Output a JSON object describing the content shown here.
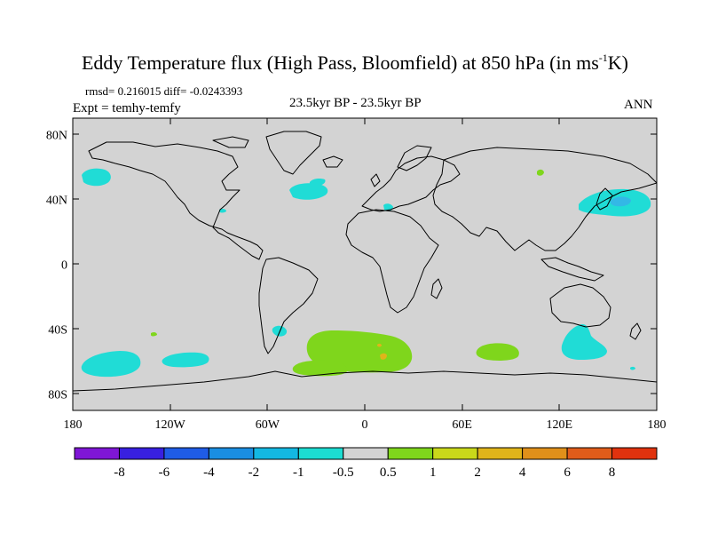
{
  "title": {
    "main": "Eddy Temperature flux (High Pass, Bloomfield) at 850 hPa (in ms",
    "unit_sup": "-1",
    "unit_end": "K)"
  },
  "stats": "rmsd= 0.216015 diff= -0.0243393",
  "expt": "Expt = temhy-temfy",
  "period": "23.5kyr BP - 23.5kyr BP",
  "season": "ANN",
  "axes": {
    "lat_labels": [
      {
        "text": "80N",
        "value": 80
      },
      {
        "text": "40N",
        "value": 40
      },
      {
        "text": "0",
        "value": 0
      },
      {
        "text": "40S",
        "value": -40
      },
      {
        "text": "80S",
        "value": -80
      }
    ],
    "lon_labels": [
      {
        "text": "180",
        "value": -180
      },
      {
        "text": "120W",
        "value": -120
      },
      {
        "text": "60W",
        "value": -60
      },
      {
        "text": "0",
        "value": 0
      },
      {
        "text": "60E",
        "value": 60
      },
      {
        "text": "120E",
        "value": 120
      },
      {
        "text": "180",
        "value": 180
      }
    ]
  },
  "colorbar": {
    "colors": [
      "#7f16d6",
      "#3820e0",
      "#1f5ce6",
      "#1a8ee2",
      "#13b8e2",
      "#1cdcd2",
      "#d3d3d3",
      "#7fd61c",
      "#c9d81a",
      "#e0b41a",
      "#e0901a",
      "#e05c1a",
      "#e0320e"
    ],
    "labels": [
      "-8",
      "-6",
      "-4",
      "-2",
      "-1",
      "-0.5",
      "0.5",
      "1",
      "2",
      "4",
      "6",
      "8"
    ]
  },
  "colors": {
    "ocean_land_neutral": "#d3d3d3",
    "cyan": "#20dcd6",
    "light_blue": "#33b8e6",
    "green": "#7fd61c",
    "orange": "#e0b41a"
  }
}
